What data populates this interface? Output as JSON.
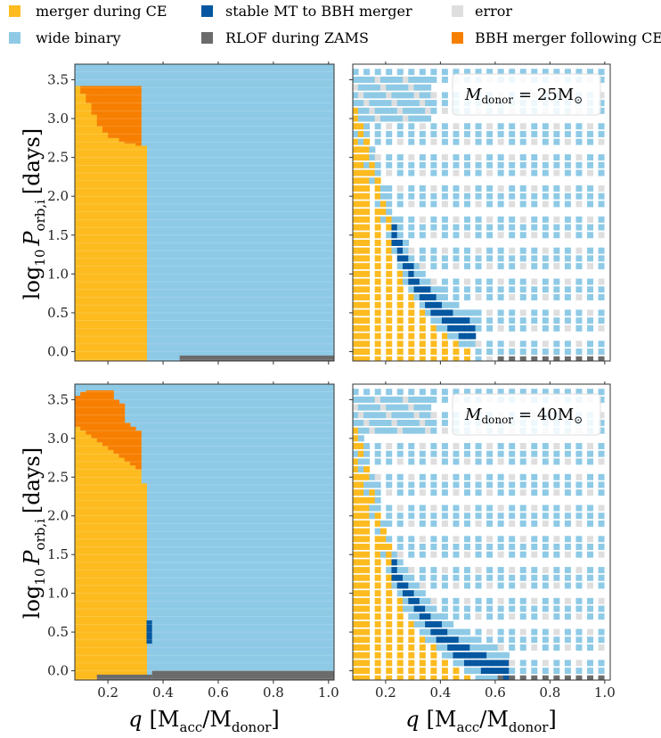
{
  "legend": [
    {
      "key": "merger",
      "label": "merger during CE",
      "color": "#fdbb1f"
    },
    {
      "key": "wide",
      "label": "wide binary",
      "color": "#8ecae6"
    },
    {
      "key": "stable",
      "label": "stable MT to BBH merger",
      "color": "#0457a0"
    },
    {
      "key": "rlof",
      "label": "RLOF during ZAMS",
      "color": "#6b6b6b"
    },
    {
      "key": "error",
      "label": "error",
      "color": "#dedede"
    },
    {
      "key": "bbhce",
      "label": "BBH merger following CE",
      "color": "#f77f00"
    }
  ],
  "axes": {
    "xlabel_q": "q",
    "xlabel_paren": "[M",
    "xlabel_acc": "acc",
    "xlabel_slash": "/M",
    "xlabel_donor": "donor",
    "xlabel_close": "]",
    "ylabel_log": "log",
    "ylabel_10": "10",
    "ylabel_P": "P",
    "ylabel_sub": "orb,i",
    "ylabel_days": "[days]",
    "xticks": [
      "0.2",
      "0.4",
      "0.6",
      "0.8",
      "1.0"
    ],
    "yticks": [
      "0.0",
      "0.5",
      "1.0",
      "1.5",
      "2.0",
      "2.5",
      "3.0",
      "3.5"
    ]
  },
  "annotations": {
    "top_right": {
      "pre": "M",
      "sub": "donor",
      "eq": "= 25M",
      "sun": "⊙"
    },
    "bottom_right": {
      "pre": "M",
      "sub": "donor",
      "eq": "= 40M",
      "sun": "⊙"
    }
  },
  "chart_data": [
    {
      "type": "heatmap",
      "panel": "top-left",
      "xlim": [
        0.08,
        1.02
      ],
      "ylim": [
        -0.12,
        3.7
      ],
      "regions": [
        {
          "category": "wide",
          "x": [
            0.08,
            1.02
          ],
          "y": [
            -0.12,
            3.7
          ]
        },
        {
          "category": "merger",
          "x": [
            0.08,
            0.34
          ],
          "y": [
            -0.12,
            2.65
          ]
        },
        {
          "category": "rlof",
          "x": [
            0.46,
            1.02
          ],
          "y": [
            -0.12,
            -0.05
          ]
        }
      ],
      "merger_top_profile": [
        [
          0.08,
          3.42
        ],
        [
          0.1,
          3.32
        ],
        [
          0.12,
          3.2
        ],
        [
          0.14,
          3.05
        ],
        [
          0.16,
          2.9
        ],
        [
          0.18,
          2.82
        ],
        [
          0.2,
          2.75
        ],
        [
          0.22,
          2.75
        ],
        [
          0.24,
          2.7
        ],
        [
          0.26,
          2.68
        ],
        [
          0.28,
          2.68
        ],
        [
          0.3,
          2.65
        ],
        [
          0.32,
          2.65
        ]
      ],
      "bbhce_top": 3.42,
      "bbhce_x": [
        0.08,
        0.31
      ]
    },
    {
      "type": "heatmap",
      "panel": "bottom-left",
      "xlim": [
        0.08,
        1.02
      ],
      "ylim": [
        -0.12,
        3.7
      ],
      "regions": [
        {
          "category": "wide",
          "x": [
            0.08,
            1.02
          ],
          "y": [
            -0.12,
            3.7
          ]
        },
        {
          "category": "merger",
          "x": [
            0.08,
            0.34
          ],
          "y": [
            -0.12,
            2.42
          ]
        },
        {
          "category": "stable",
          "x": [
            0.34,
            0.36
          ],
          "y": [
            0.35,
            0.65
          ]
        },
        {
          "category": "rlof",
          "x": [
            0.16,
            0.36
          ],
          "y": [
            -0.12,
            -0.05
          ]
        },
        {
          "category": "rlof",
          "x": [
            0.36,
            1.02
          ],
          "y": [
            -0.12,
            0.0
          ]
        }
      ],
      "merger_top_profile": [
        [
          0.08,
          3.15
        ],
        [
          0.1,
          3.1
        ],
        [
          0.12,
          3.05
        ],
        [
          0.14,
          3.0
        ],
        [
          0.16,
          2.95
        ],
        [
          0.18,
          2.9
        ],
        [
          0.2,
          2.85
        ],
        [
          0.22,
          2.8
        ],
        [
          0.24,
          2.75
        ],
        [
          0.26,
          2.7
        ],
        [
          0.28,
          2.65
        ],
        [
          0.3,
          2.6
        ],
        [
          0.32,
          2.42
        ]
      ],
      "bbhce_top_profile": [
        [
          0.08,
          3.55
        ],
        [
          0.1,
          3.6
        ],
        [
          0.12,
          3.62
        ],
        [
          0.14,
          3.62
        ],
        [
          0.16,
          3.62
        ],
        [
          0.18,
          3.62
        ],
        [
          0.2,
          3.62
        ],
        [
          0.22,
          3.5
        ],
        [
          0.24,
          3.45
        ],
        [
          0.26,
          3.2
        ],
        [
          0.28,
          3.15
        ],
        [
          0.3,
          3.1
        ]
      ]
    },
    {
      "type": "scatter",
      "panel": "top-right",
      "xlim": [
        0.08,
        1.02
      ],
      "ylim": [
        -0.12,
        3.7
      ],
      "band_center": [
        [
          0.1,
          3.0
        ],
        [
          0.14,
          2.5
        ],
        [
          0.18,
          2.0
        ],
        [
          0.22,
          1.6
        ],
        [
          0.26,
          1.25
        ],
        [
          0.3,
          0.95
        ],
        [
          0.34,
          0.75
        ],
        [
          0.38,
          0.6
        ],
        [
          0.42,
          0.45
        ],
        [
          0.46,
          0.35
        ],
        [
          0.5,
          0.28
        ],
        [
          0.52,
          0.25
        ]
      ],
      "cloud_y": [
        3.0,
        3.6
      ]
    },
    {
      "type": "scatter",
      "panel": "bottom-right",
      "xlim": [
        0.08,
        1.02
      ],
      "ylim": [
        -0.12,
        3.7
      ],
      "band_center": [
        [
          0.1,
          3.0
        ],
        [
          0.14,
          2.4
        ],
        [
          0.18,
          1.85
        ],
        [
          0.22,
          1.4
        ],
        [
          0.26,
          1.1
        ],
        [
          0.3,
          0.9
        ],
        [
          0.34,
          0.7
        ],
        [
          0.38,
          0.55
        ],
        [
          0.42,
          0.42
        ],
        [
          0.46,
          0.3
        ],
        [
          0.5,
          0.2
        ],
        [
          0.54,
          0.12
        ],
        [
          0.58,
          0.05
        ],
        [
          0.62,
          0.0
        ],
        [
          0.66,
          0.0
        ]
      ],
      "cloud_y": [
        3.1,
        3.6
      ]
    }
  ]
}
